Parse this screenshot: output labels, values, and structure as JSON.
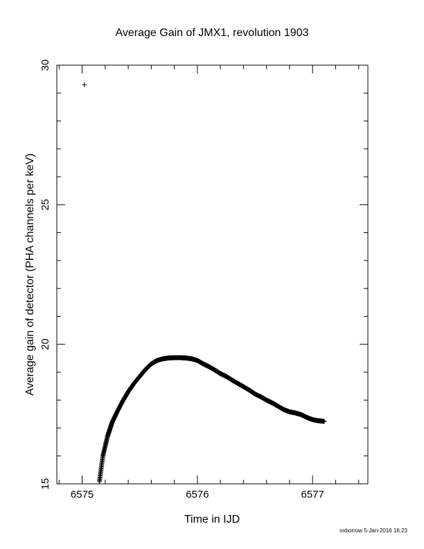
{
  "chart_data": {
    "type": "scatter",
    "title": "Average Gain of JMX1, revolution 1903",
    "xlabel": "Time in IJD",
    "ylabel": "Average gain of detector (PHA channels per keV)",
    "xlim": [
      6574.78,
      6577.48
    ],
    "ylim": [
      15,
      30
    ],
    "x_ticks": [
      6575,
      6576,
      6577
    ],
    "x_tick_labels": [
      "6575",
      "6576",
      "6577"
    ],
    "y_ticks": [
      15,
      20,
      25,
      30
    ],
    "y_tick_labels": [
      "15",
      "20",
      "25",
      "30"
    ],
    "grid": false,
    "marker": "plus",
    "series": [
      {
        "x": [
          6575.02,
          6575.15,
          6575.18,
          6575.22,
          6575.26,
          6575.3,
          6575.35,
          6575.4,
          6575.45,
          6575.5,
          6575.55,
          6575.6,
          6575.65,
          6575.7,
          6575.75,
          6575.8,
          6575.85,
          6575.9,
          6575.95,
          6576.0,
          6576.05,
          6576.1,
          6576.15,
          6576.2,
          6576.25,
          6576.3,
          6576.35,
          6576.4,
          6576.45,
          6576.5,
          6576.55,
          6576.6,
          6576.65,
          6576.7,
          6576.75,
          6576.8,
          6576.85,
          6576.9,
          6576.95,
          6577.0,
          6577.05,
          6577.1
        ],
        "y": [
          29.3,
          15.1,
          16.0,
          16.7,
          17.2,
          17.55,
          17.95,
          18.3,
          18.6,
          18.85,
          19.1,
          19.3,
          19.42,
          19.48,
          19.51,
          19.52,
          19.52,
          19.51,
          19.48,
          19.42,
          19.3,
          19.2,
          19.08,
          18.95,
          18.85,
          18.72,
          18.6,
          18.48,
          18.36,
          18.22,
          18.12,
          18.0,
          17.9,
          17.78,
          17.66,
          17.58,
          17.54,
          17.48,
          17.38,
          17.3,
          17.26,
          17.24
        ]
      }
    ]
  },
  "footer": {
    "credit": "oxborrow  5-Jan-2016 16:23"
  }
}
